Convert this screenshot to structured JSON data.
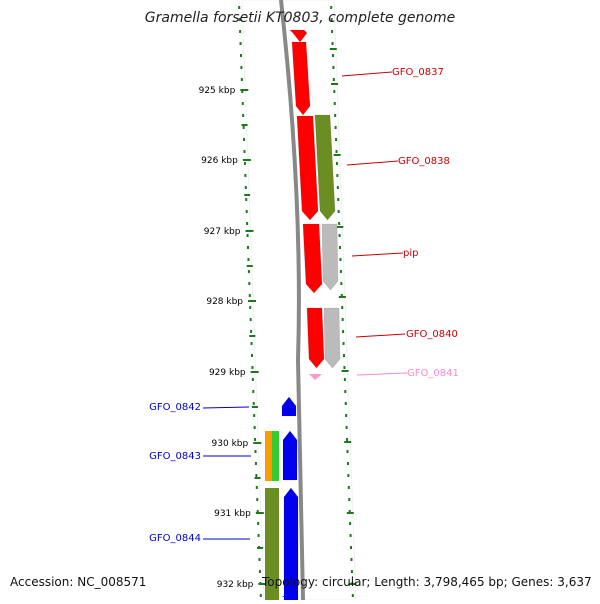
{
  "title": "Gramella forsetii KT0803, complete genome",
  "footer": {
    "accession": "Accession: NC_008571",
    "summary": "Topology: circular; Length: 3,798,465 bp; Genes: 3,637"
  },
  "ruler": {
    "unit": "kbp",
    "ticks": [
      "925 kbp",
      "926 kbp",
      "927 kbp",
      "928 kbp",
      "929 kbp",
      "930 kbp",
      "931 kbp",
      "932 kbp"
    ]
  },
  "colors": {
    "tick": "#1a7a1a",
    "backbone": "#888888",
    "red": "#ff0000",
    "olive": "#6b8e23",
    "gray": "#bbbbbb",
    "blue": "#0000ee",
    "orange": "#ff9900",
    "green": "#33cc33",
    "pink": "#ff99cc",
    "label_red": "#cc0000",
    "label_blue": "#0000cc",
    "label_pink": "#ff88cc"
  },
  "genes": [
    {
      "label": "GFO_0837",
      "color": "label_red"
    },
    {
      "label": "GFO_0838",
      "color": "label_red"
    },
    {
      "label": "pip",
      "color": "label_red"
    },
    {
      "label": "GFO_0840",
      "color": "label_red"
    },
    {
      "label": "GFO_0841",
      "color": "label_pink"
    },
    {
      "label": "GFO_0842",
      "color": "label_blue"
    },
    {
      "label": "GFO_0843",
      "color": "label_blue"
    },
    {
      "label": "GFO_0844",
      "color": "label_blue"
    }
  ]
}
